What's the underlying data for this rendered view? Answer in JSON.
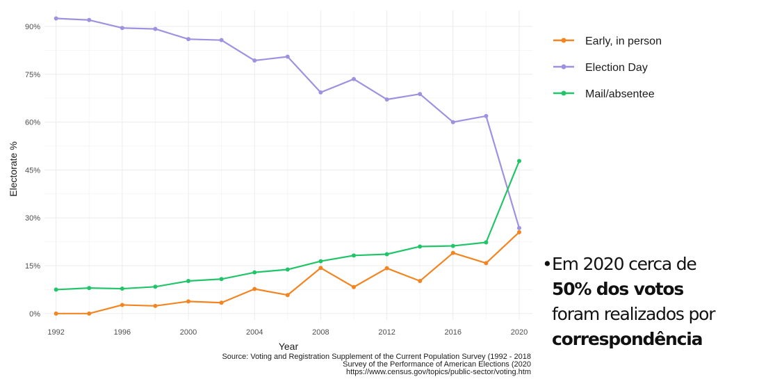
{
  "chart_data": {
    "type": "line",
    "xlabel": "Year",
    "ylabel": "Electorate %",
    "xlim": [
      1991.3,
      2020.8
    ],
    "ylim": [
      -2,
      95
    ],
    "x_ticks": [
      1992,
      1996,
      2000,
      2004,
      2008,
      2012,
      2016,
      2020
    ],
    "y_ticks": [
      0,
      15,
      30,
      45,
      60,
      75,
      90
    ],
    "y_tick_labels": [
      "0%",
      "15%",
      "30%",
      "45%",
      "60%",
      "75%",
      "90%"
    ],
    "grid": true,
    "legend_position": "right",
    "x": [
      1992,
      1994,
      1996,
      1998,
      2000,
      2002,
      2004,
      2006,
      2008,
      2010,
      2012,
      2014,
      2016,
      2018,
      2020
    ],
    "series": [
      {
        "name": "Early, in person",
        "color": "#f28522",
        "values": [
          0,
          0,
          2.7,
          2.4,
          3.8,
          3.4,
          7.7,
          5.8,
          14.3,
          8.3,
          14.2,
          10.2,
          19.0,
          15.8,
          25.5
        ]
      },
      {
        "name": "Election Day",
        "color": "#9d92e0",
        "values": [
          92.5,
          92.0,
          89.5,
          89.2,
          86.0,
          85.7,
          79.3,
          80.5,
          69.3,
          73.5,
          67.1,
          68.8,
          60.0,
          61.9,
          26.8
        ]
      },
      {
        "name": "Mail/absentee",
        "color": "#22c46a",
        "values": [
          7.5,
          8.0,
          7.8,
          8.4,
          10.2,
          10.8,
          12.9,
          13.8,
          16.4,
          18.2,
          18.6,
          21.0,
          21.2,
          22.3,
          47.8
        ]
      }
    ]
  },
  "source": {
    "line1": "Source: Voting and Registration Supplement of the Current Population Survey (1992 - 2018",
    "line2": "Survey of the Performance of American Elections (2020",
    "line3": "https://www.census.gov/topics/public-sector/voting.htm"
  },
  "bullet": {
    "dot": "•",
    "line1": "Em 2020 cerca de",
    "line2_bold": "50% dos votos",
    "line3": "foram realizados por",
    "line4_bold": "correspondência"
  }
}
